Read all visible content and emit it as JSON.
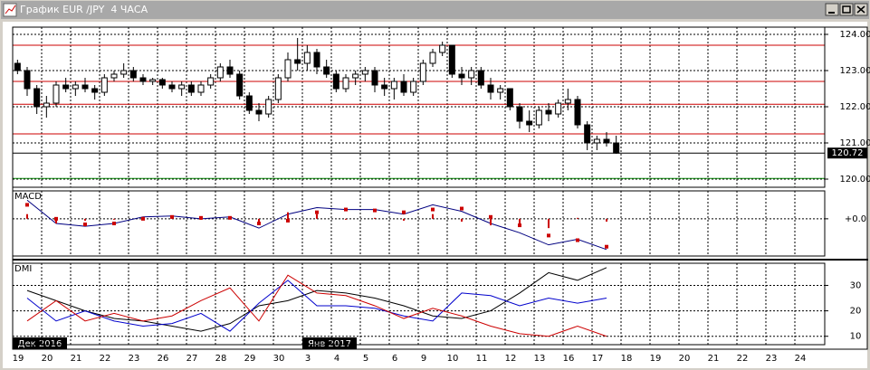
{
  "chart_data": [
    {
      "type": "candlestick",
      "title": "График EUR /JPY  4 ЧАСА",
      "categories": [
        "19",
        "20",
        "21",
        "22",
        "23",
        "26",
        "27",
        "28",
        "29",
        "30",
        "3",
        "4",
        "5",
        "6",
        "9",
        "10",
        "11",
        "12",
        "13",
        "16",
        "17",
        "18",
        "19",
        "20",
        "21",
        "22",
        "23",
        "24"
      ],
      "months": [
        "Дек 2016",
        "Янв 2017"
      ],
      "ylim": [
        119.775,
        124.2
      ],
      "yticks": [
        {
          "value": 124,
          "label": "124.00"
        },
        {
          "value": 123,
          "label": "123.00"
        },
        {
          "value": 122,
          "label": "122.00"
        },
        {
          "value": 121,
          "label": "121.00"
        },
        {
          "value": 120,
          "label": "120.00"
        }
      ],
      "grid": true,
      "up_color": "#ffffff",
      "down_color": "#000000",
      "levels": [
        {
          "value": 123.7,
          "color": "#cc0000"
        },
        {
          "value": 122.7,
          "color": "#cc0000"
        },
        {
          "value": 122.07,
          "color": "#cc0000"
        },
        {
          "value": 121.25,
          "color": "#cc0000"
        },
        {
          "value": 120.02,
          "color": "#008000"
        }
      ],
      "last_price": 120.72,
      "candles": [
        [
          123.2,
          123.3,
          122.9,
          123.0
        ],
        [
          123.0,
          123.1,
          122.3,
          122.5
        ],
        [
          122.5,
          122.6,
          121.8,
          122.0
        ],
        [
          122.0,
          122.3,
          121.7,
          122.1
        ],
        [
          122.1,
          122.7,
          122.0,
          122.6
        ],
        [
          122.6,
          122.8,
          122.4,
          122.5
        ],
        [
          122.5,
          122.7,
          122.3,
          122.6
        ],
        [
          122.6,
          122.8,
          122.4,
          122.5
        ],
        [
          122.5,
          122.6,
          122.2,
          122.4
        ],
        [
          122.4,
          122.9,
          122.3,
          122.8
        ],
        [
          122.8,
          123.0,
          122.7,
          122.9
        ],
        [
          122.9,
          123.2,
          122.8,
          123.0
        ],
        [
          123.0,
          123.1,
          122.7,
          122.8
        ],
        [
          122.8,
          122.9,
          122.6,
          122.7
        ],
        [
          122.7,
          122.8,
          122.6,
          122.75
        ],
        [
          122.75,
          122.8,
          122.5,
          122.6
        ],
        [
          122.6,
          122.7,
          122.4,
          122.5
        ],
        [
          122.5,
          122.7,
          122.3,
          122.6
        ],
        [
          122.6,
          122.7,
          122.3,
          122.4
        ],
        [
          122.4,
          122.7,
          122.3,
          122.6
        ],
        [
          122.6,
          122.9,
          122.5,
          122.8
        ],
        [
          122.8,
          123.2,
          122.7,
          123.1
        ],
        [
          123.1,
          123.3,
          122.8,
          122.9
        ],
        [
          122.9,
          123.0,
          122.2,
          122.3
        ],
        [
          122.3,
          122.4,
          121.8,
          121.9
        ],
        [
          121.9,
          122.1,
          121.6,
          121.8
        ],
        [
          121.8,
          122.3,
          121.7,
          122.2
        ],
        [
          122.2,
          122.9,
          122.1,
          122.8
        ],
        [
          122.8,
          123.5,
          122.7,
          123.3
        ],
        [
          123.3,
          123.9,
          123.0,
          123.2
        ],
        [
          123.2,
          123.7,
          123.0,
          123.5
        ],
        [
          123.5,
          123.6,
          122.9,
          123.1
        ],
        [
          123.1,
          123.3,
          122.8,
          122.9
        ],
        [
          122.9,
          123.0,
          122.4,
          122.5
        ],
        [
          122.5,
          122.9,
          122.4,
          122.8
        ],
        [
          122.8,
          123.0,
          122.6,
          122.9
        ],
        [
          122.9,
          123.1,
          122.7,
          123.0
        ],
        [
          123.0,
          123.1,
          122.4,
          122.6
        ],
        [
          122.6,
          122.8,
          122.3,
          122.5
        ],
        [
          122.5,
          122.8,
          122.2,
          122.7
        ],
        [
          122.7,
          122.9,
          122.3,
          122.4
        ],
        [
          122.4,
          122.8,
          122.3,
          122.7
        ],
        [
          122.7,
          123.3,
          122.6,
          123.2
        ],
        [
          123.2,
          123.6,
          123.1,
          123.5
        ],
        [
          123.5,
          123.8,
          123.4,
          123.7
        ],
        [
          123.7,
          123.7,
          122.8,
          122.9
        ],
        [
          122.9,
          123.1,
          122.6,
          122.8
        ],
        [
          122.8,
          123.1,
          122.6,
          123.0
        ],
        [
          123.0,
          123.1,
          122.5,
          122.6
        ],
        [
          122.6,
          122.8,
          122.2,
          122.4
        ],
        [
          122.4,
          122.6,
          122.2,
          122.5
        ],
        [
          122.5,
          122.5,
          121.9,
          122.0
        ],
        [
          122.0,
          122.1,
          121.4,
          121.6
        ],
        [
          121.6,
          121.9,
          121.3,
          121.5
        ],
        [
          121.5,
          122.0,
          121.4,
          121.9
        ],
        [
          121.9,
          122.1,
          121.6,
          121.8
        ],
        [
          121.8,
          122.2,
          121.7,
          122.1
        ],
        [
          122.1,
          122.5,
          121.9,
          122.2
        ],
        [
          122.2,
          122.3,
          121.4,
          121.5
        ],
        [
          121.5,
          121.6,
          120.8,
          121.0
        ],
        [
          121.0,
          121.2,
          120.8,
          121.1
        ],
        [
          121.1,
          121.3,
          120.9,
          121.0
        ],
        [
          121.0,
          121.2,
          120.7,
          120.72
        ]
      ]
    },
    {
      "type": "macd",
      "title": "MACD",
      "ylim": [
        -0.4,
        0.3
      ],
      "yticks": [
        {
          "value": 0,
          "label": "+0.0"
        }
      ],
      "series": [
        {
          "color": "#000080",
          "style": "line",
          "values": [
            0.2,
            -0.05,
            -0.08,
            -0.05,
            0.02,
            0.03,
            0.0,
            0.02,
            -0.1,
            0.05,
            0.12,
            0.1,
            0.1,
            0.05,
            0.15,
            0.08,
            -0.05,
            -0.15,
            -0.28,
            -0.22,
            -0.33
          ]
        },
        {
          "color": "#cc0000",
          "style": "dots",
          "values": [
            0.15,
            0.0,
            -0.06,
            -0.05,
            0.0,
            0.02,
            0.01,
            0.01,
            -0.05,
            -0.02,
            0.07,
            0.1,
            0.09,
            0.07,
            0.1,
            0.11,
            0.02,
            -0.07,
            -0.18,
            -0.23,
            -0.3
          ]
        },
        {
          "color": "#cc0000",
          "style": "histogram",
          "values": [
            0.05,
            -0.05,
            -0.02,
            0.0,
            0.02,
            0.01,
            -0.01,
            0.01,
            -0.05,
            0.07,
            0.05,
            0.0,
            0.01,
            -0.02,
            0.05,
            -0.03,
            -0.07,
            -0.08,
            -0.1,
            0.01,
            -0.03
          ]
        }
      ]
    },
    {
      "type": "dmi",
      "title": "DMI",
      "ylim": [
        6.7,
        38.7
      ],
      "yticks": [
        30,
        20,
        10
      ],
      "series": [
        {
          "color": "#000000",
          "values": [
            28,
            24,
            20,
            17,
            16,
            14,
            12,
            15,
            22,
            24,
            28,
            27,
            25,
            22,
            18,
            17,
            20,
            27,
            35,
            32,
            37
          ]
        },
        {
          "color": "#0000cc",
          "values": [
            25,
            16,
            20,
            16,
            14,
            15,
            19,
            12,
            23,
            32,
            22,
            22,
            21,
            18,
            16,
            27,
            26,
            22,
            25,
            23,
            25
          ]
        },
        {
          "color": "#cc0000",
          "values": [
            16,
            24,
            16,
            19,
            16,
            18,
            24,
            29,
            16,
            34,
            27,
            26,
            22,
            17,
            21,
            18,
            14,
            11,
            10,
            14,
            10
          ]
        }
      ]
    }
  ]
}
